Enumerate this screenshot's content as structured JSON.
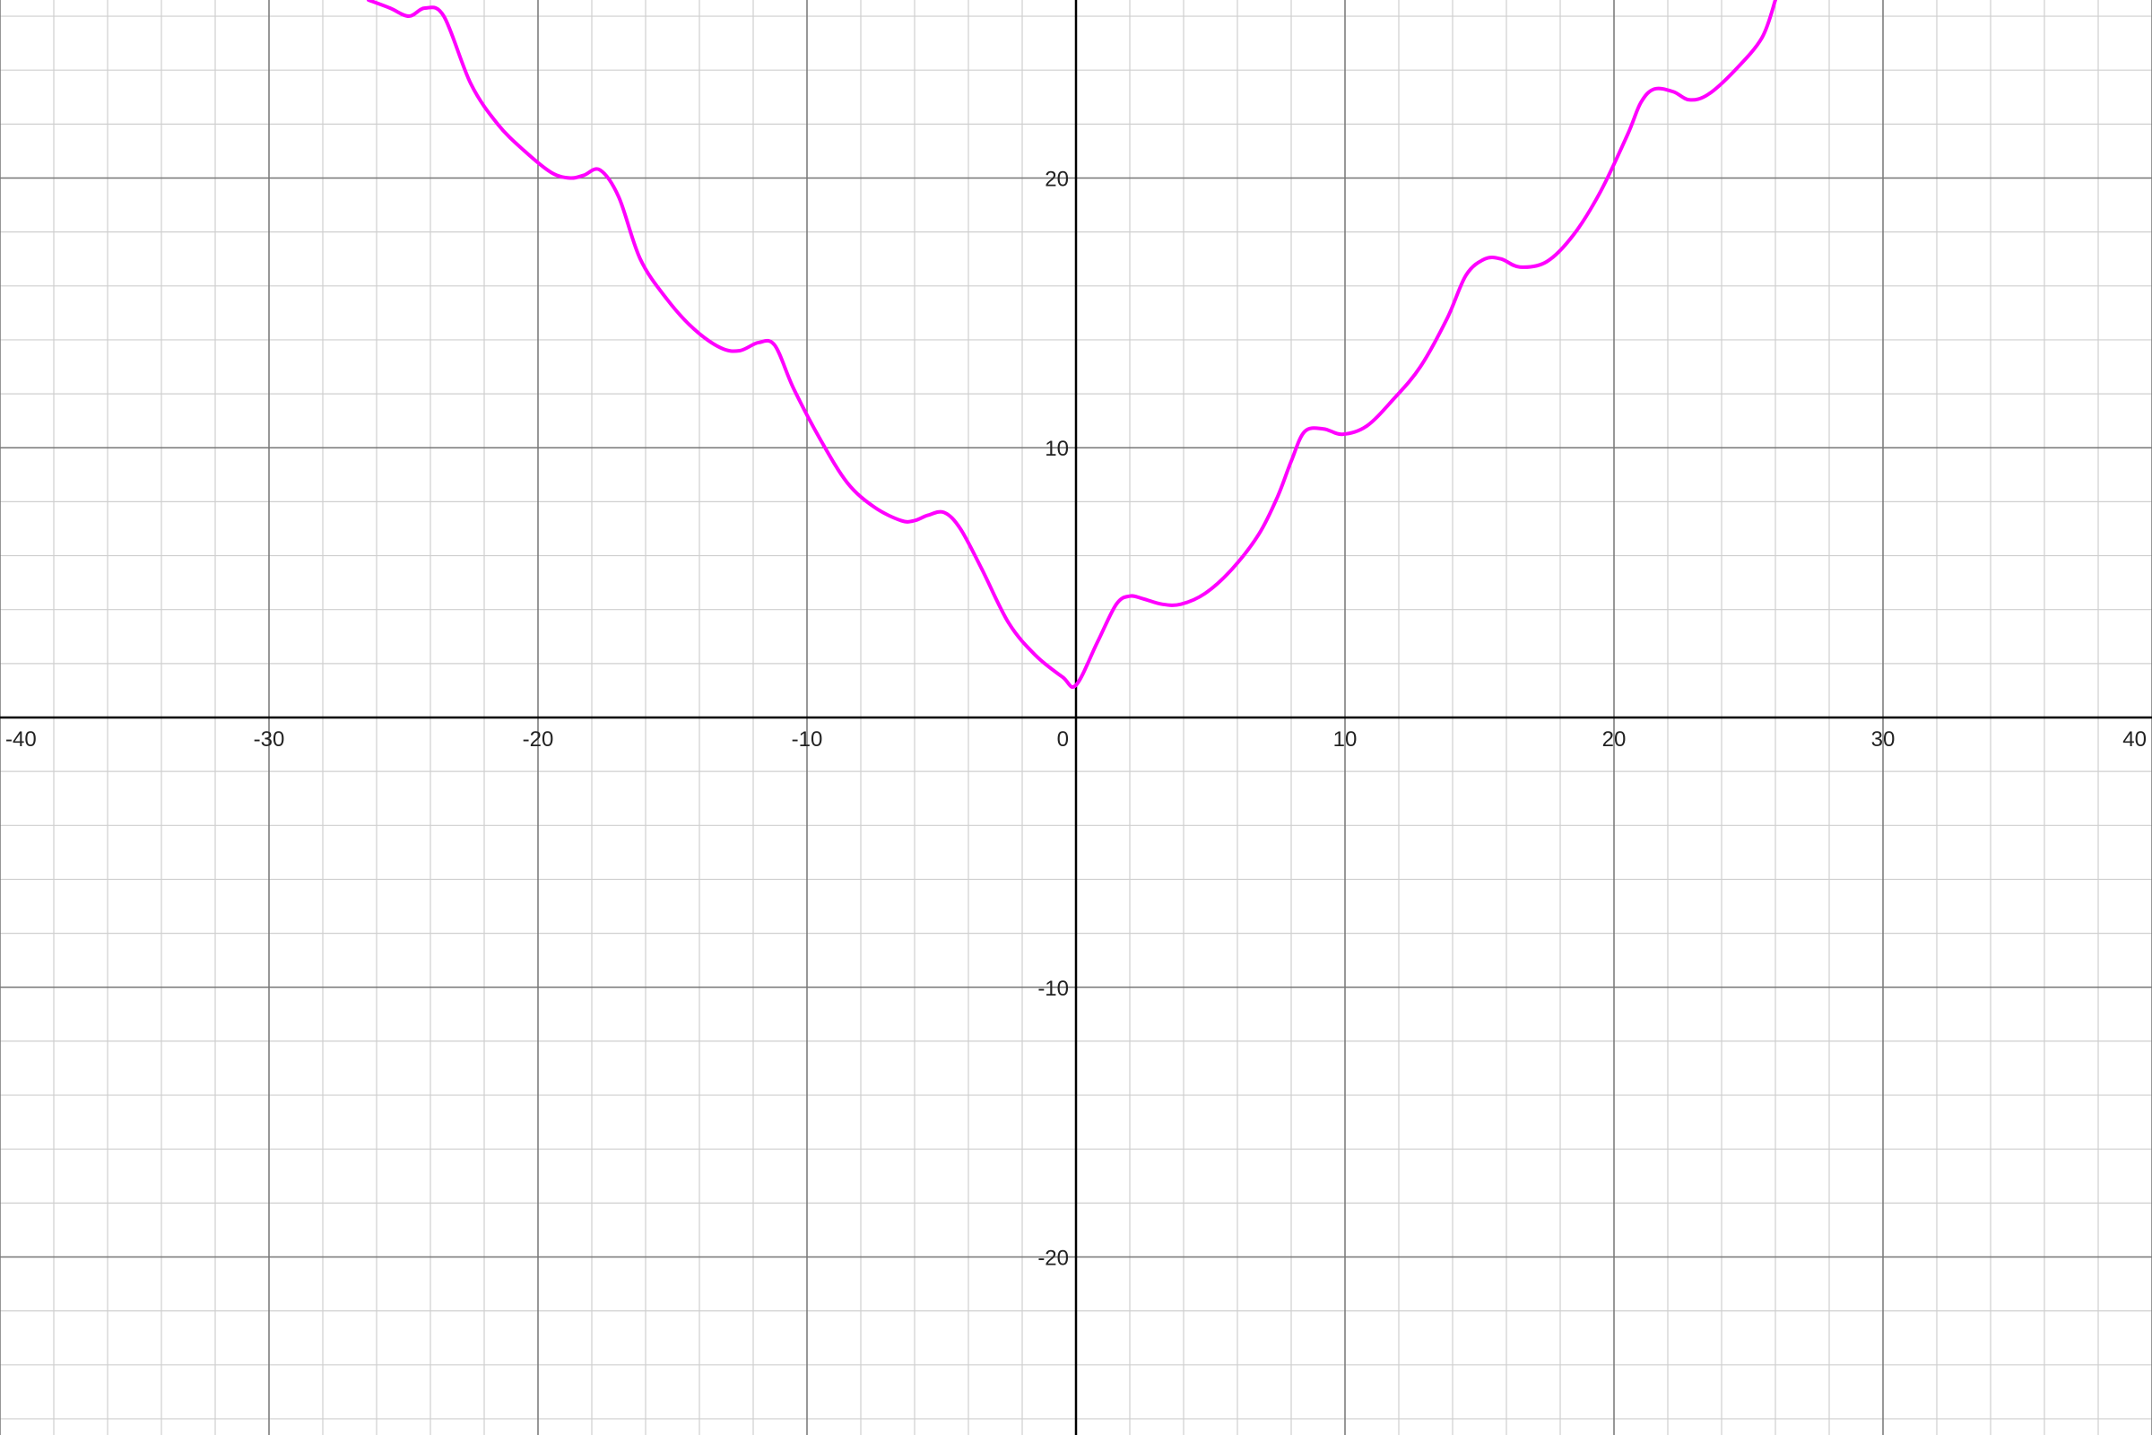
{
  "chart_data": {
    "type": "line",
    "title": "",
    "xlabel": "",
    "ylabel": "",
    "xlim": [
      -40,
      40
    ],
    "ylim": [
      -26.6,
      26.6
    ],
    "grid": true,
    "major_step": 10,
    "minor_step": 2,
    "x_ticks": [
      -40,
      -30,
      -20,
      -10,
      0,
      10,
      20,
      30,
      40
    ],
    "x_tick_labels": [
      "-40",
      "-30",
      "-20",
      "-10",
      "0",
      "10",
      "20",
      "30",
      "40"
    ],
    "y_ticks": [
      -20,
      -10,
      10,
      20
    ],
    "y_tick_labels": [
      "-20",
      "-10",
      "10",
      "20"
    ],
    "series": [
      {
        "color": "#ff00ff",
        "x": [
          -26.3,
          -25.5,
          -24.8,
          -24.2,
          -23.5,
          -22.5,
          -21.5,
          -20.5,
          -19.5,
          -18.8,
          -18.3,
          -17.7,
          -17.0,
          -16.2,
          -15.2,
          -14.2,
          -13.2,
          -12.5,
          -11.8,
          -11.2,
          -10.5,
          -9.5,
          -8.5,
          -7.5,
          -6.5,
          -6.0,
          -5.5,
          -4.9,
          -4.3,
          -3.5,
          -2.5,
          -1.5,
          -0.5,
          0.0,
          0.8,
          1.5,
          2.0,
          2.5,
          3.2,
          3.9,
          4.8,
          5.8,
          6.8,
          7.5,
          8.0,
          8.5,
          9.2,
          9.9,
          10.8,
          11.8,
          12.8,
          13.8,
          14.5,
          15.2,
          15.8,
          16.5,
          17.5,
          18.5,
          19.5,
          20.5,
          21.0,
          21.5,
          22.2,
          22.8,
          23.5,
          24.5,
          25.5,
          26.0
        ],
        "y": [
          26.6,
          26.3,
          26.0,
          26.3,
          26.0,
          23.5,
          22.0,
          21.0,
          20.2,
          20.0,
          20.1,
          20.3,
          19.3,
          17.0,
          15.5,
          14.4,
          13.7,
          13.6,
          13.9,
          13.8,
          12.2,
          10.3,
          8.7,
          7.8,
          7.3,
          7.3,
          7.5,
          7.6,
          7.0,
          5.5,
          3.5,
          2.3,
          1.5,
          1.2,
          2.8,
          4.2,
          4.5,
          4.4,
          4.2,
          4.2,
          4.6,
          5.5,
          6.8,
          8.2,
          9.5,
          10.6,
          10.7,
          10.5,
          10.8,
          11.8,
          13.0,
          14.8,
          16.4,
          17.0,
          17.0,
          16.7,
          16.9,
          17.9,
          19.5,
          21.6,
          22.8,
          23.3,
          23.2,
          22.9,
          23.1,
          24.0,
          25.2,
          26.6
        ]
      }
    ]
  },
  "colors": {
    "curve": "#ff00ff",
    "axis": "#000000",
    "major_grid": "#777777",
    "minor_grid": "#cfcfcf",
    "tick_text": "#222222",
    "background": "#ffffff"
  }
}
